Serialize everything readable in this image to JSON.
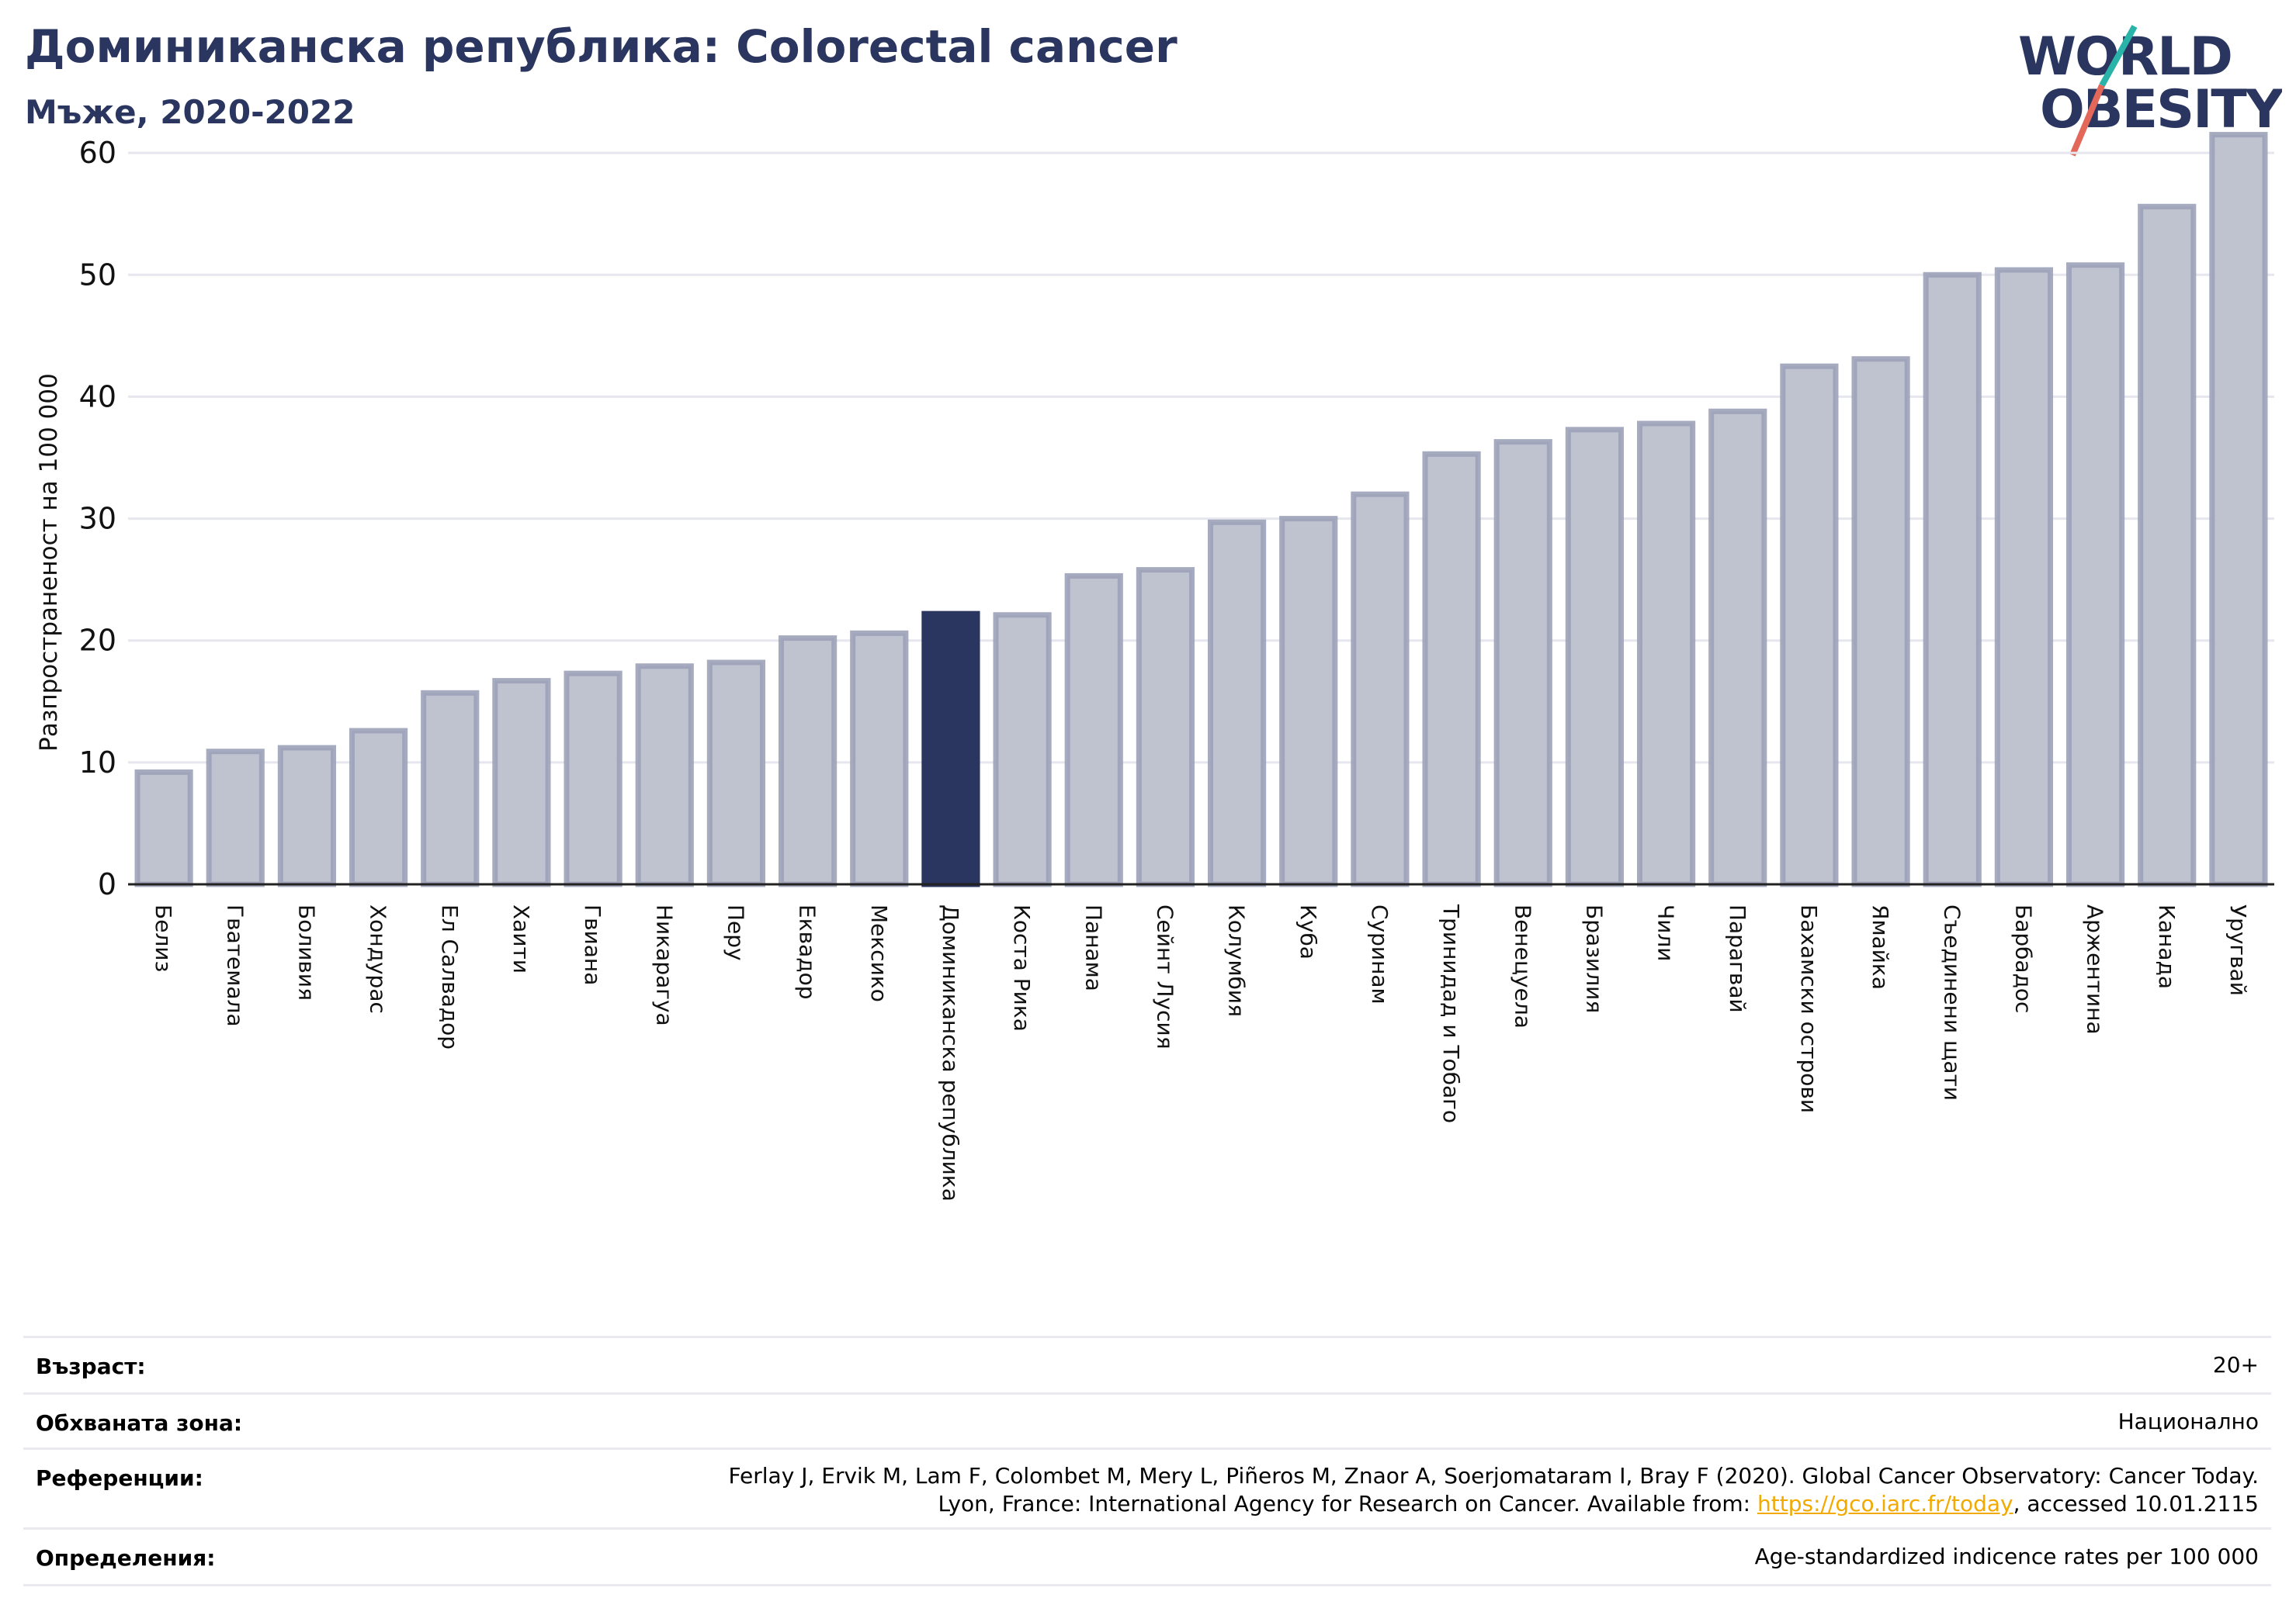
{
  "header": {
    "title": "Доминиканска република: Colorectal cancer",
    "subtitle": "Мъже, 2020-2022"
  },
  "logo": {
    "line1": "WORLD",
    "line2": "OBESITY",
    "colors": {
      "text": "#2a365f",
      "slash_top": "#2ab3a8",
      "slash_bottom": "#e4685a"
    }
  },
  "chart_data": {
    "type": "bar",
    "ylabel": "Разпространеност  на 100 000",
    "xlabel": "",
    "ylim": [
      0,
      63
    ],
    "yticks": [
      0,
      10,
      20,
      30,
      40,
      50,
      60
    ],
    "grid": true,
    "highlight": "Доминиканска република",
    "colors": {
      "bar": "#bfc2cf",
      "bar_border": "#9da2b8",
      "highlight": "#2a365f",
      "grid": "#e6e6ee"
    },
    "categories": [
      "Белиз",
      "Гватемала",
      "Боливия",
      "Хондурас",
      "Ел Салвадор",
      "Хаити",
      "Гвиана",
      "Никарагуа",
      "Перу",
      "Еквадор",
      "Мексико",
      "Доминиканска република",
      "Коста Рика",
      "Панама",
      "Сейнт Лусия",
      "Колумбия",
      "Куба",
      "Суринам",
      "Тринидад и Тобаго",
      "Венецуела",
      "Бразилия",
      "Чили",
      "Парагвай",
      "Бахамски острови",
      "Ямайка",
      "Съединени щати",
      "Барбадос",
      "Аржентина",
      "Канада",
      "Уругвай"
    ],
    "values": [
      9.2,
      10.9,
      11.2,
      12.6,
      15.7,
      16.7,
      17.3,
      17.9,
      18.2,
      20.2,
      20.6,
      22.2,
      22.1,
      25.3,
      25.8,
      29.7,
      30.0,
      32.0,
      35.3,
      36.3,
      37.3,
      37.8,
      38.8,
      42.5,
      43.1,
      50.0,
      50.4,
      50.8,
      55.6,
      61.5
    ]
  },
  "info": {
    "rows": [
      {
        "label": "Възраст:",
        "value": "20+"
      },
      {
        "label": "Обхваната зона:",
        "value": "Национално"
      },
      {
        "label": "Референции:",
        "value_line1": "Ferlay J, Ervik M, Lam F, Colombet M, Mery L, Piñeros M, Znaor A, Soerjomataram I, Bray F (2020). Global Cancer Observatory: Cancer Today.",
        "value_line2_prefix": "Lyon, France: International Agency for Research on Cancer. Available from: ",
        "link": "https://gco.iarc.fr/today",
        "value_line2_suffix": ", accessed 10.01.2115"
      },
      {
        "label": "Определения:",
        "value": "Age-standardized indicence rates per 100 000"
      }
    ]
  }
}
